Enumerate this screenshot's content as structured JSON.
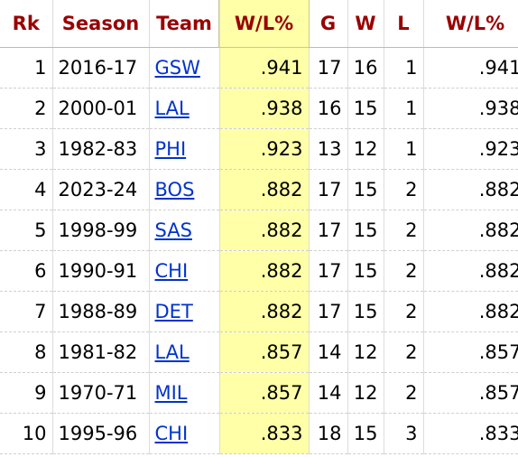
{
  "table": {
    "headers": [
      "Rk",
      "Season",
      "Team",
      "W/L%",
      "G",
      "W",
      "L",
      "W/L%"
    ],
    "rows": [
      {
        "rk": "1",
        "season": "2016-17",
        "team": "GSW",
        "wl": ".941",
        "g": "17",
        "w": "16",
        "l": "1",
        "wl2": ".941"
      },
      {
        "rk": "2",
        "season": "2000-01",
        "team": "LAL",
        "wl": ".938",
        "g": "16",
        "w": "15",
        "l": "1",
        "wl2": ".938"
      },
      {
        "rk": "3",
        "season": "1982-83",
        "team": "PHI",
        "wl": ".923",
        "g": "13",
        "w": "12",
        "l": "1",
        "wl2": ".923"
      },
      {
        "rk": "4",
        "season": "2023-24",
        "team": "BOS",
        "wl": ".882",
        "g": "17",
        "w": "15",
        "l": "2",
        "wl2": ".882"
      },
      {
        "rk": "5",
        "season": "1998-99",
        "team": "SAS",
        "wl": ".882",
        "g": "17",
        "w": "15",
        "l": "2",
        "wl2": ".882"
      },
      {
        "rk": "6",
        "season": "1990-91",
        "team": "CHI",
        "wl": ".882",
        "g": "17",
        "w": "15",
        "l": "2",
        "wl2": ".882"
      },
      {
        "rk": "7",
        "season": "1988-89",
        "team": "DET",
        "wl": ".882",
        "g": "17",
        "w": "15",
        "l": "2",
        "wl2": ".882"
      },
      {
        "rk": "8",
        "season": "1981-82",
        "team": "LAL",
        "wl": ".857",
        "g": "14",
        "w": "12",
        "l": "2",
        "wl2": ".857"
      },
      {
        "rk": "9",
        "season": "1970-71",
        "team": "MIL",
        "wl": ".857",
        "g": "14",
        "w": "12",
        "l": "2",
        "wl2": ".857"
      },
      {
        "rk": "10",
        "season": "1995-96",
        "team": "CHI",
        "wl": ".833",
        "g": "18",
        "w": "15",
        "l": "3",
        "wl2": ".833"
      }
    ]
  },
  "colors": {
    "header_text": "#990000",
    "link": "#0033cc",
    "highlight": "#ffffa8"
  }
}
